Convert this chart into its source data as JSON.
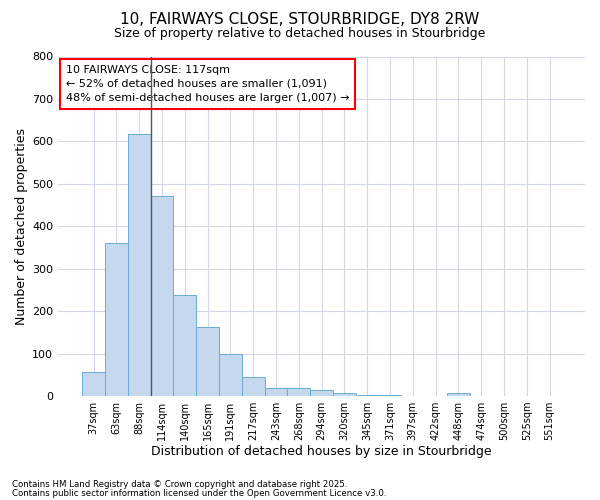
{
  "title_line1": "10, FAIRWAYS CLOSE, STOURBRIDGE, DY8 2RW",
  "title_line2": "Size of property relative to detached houses in Stourbridge",
  "xlabel": "Distribution of detached houses by size in Stourbridge",
  "ylabel": "Number of detached properties",
  "categories": [
    "37sqm",
    "63sqm",
    "88sqm",
    "114sqm",
    "140sqm",
    "165sqm",
    "191sqm",
    "217sqm",
    "243sqm",
    "268sqm",
    "294sqm",
    "320sqm",
    "345sqm",
    "371sqm",
    "397sqm",
    "422sqm",
    "448sqm",
    "474sqm",
    "500sqm",
    "525sqm",
    "551sqm"
  ],
  "values": [
    57,
    360,
    618,
    472,
    238,
    162,
    99,
    45,
    18,
    18,
    14,
    7,
    3,
    2,
    1,
    1,
    6,
    1,
    1,
    1,
    1
  ],
  "bar_color": "#c5d8ee",
  "bar_edge_color": "#6aabd2",
  "annotation_line1": "10 FAIRWAYS CLOSE: 117sqm",
  "annotation_line2": "← 52% of detached houses are smaller (1,091)",
  "annotation_line3": "48% of semi-detached houses are larger (1,007) →",
  "vline_position": 2.5,
  "vline_color": "#555555",
  "background_color": "#ffffff",
  "plot_background_color": "#ffffff",
  "grid_color": "#d0d8e8",
  "ylim": [
    0,
    800
  ],
  "yticks": [
    0,
    100,
    200,
    300,
    400,
    500,
    600,
    700,
    800
  ],
  "footer_line1": "Contains HM Land Registry data © Crown copyright and database right 2025.",
  "footer_line2": "Contains public sector information licensed under the Open Government Licence v3.0."
}
